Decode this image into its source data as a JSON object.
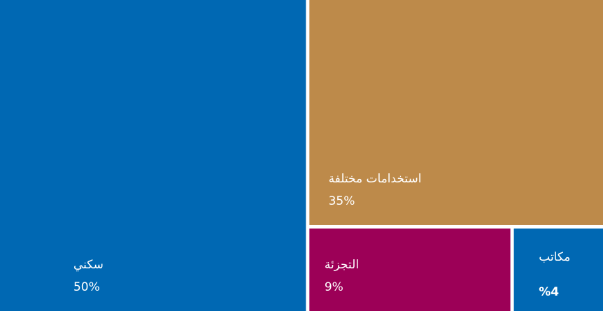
{
  "chart_data": {
    "type": "treemap",
    "categories": [
      "سكني",
      "استخدامات مختلفة",
      "التجزئة",
      "مكاتب"
    ],
    "values": [
      50,
      35,
      9,
      4
    ],
    "value_labels": [
      "50%",
      "35%",
      "9%",
      "%4"
    ],
    "colors": [
      "#0068b3",
      "#bd8a4a",
      "#9c0057",
      "#0068b3"
    ]
  }
}
